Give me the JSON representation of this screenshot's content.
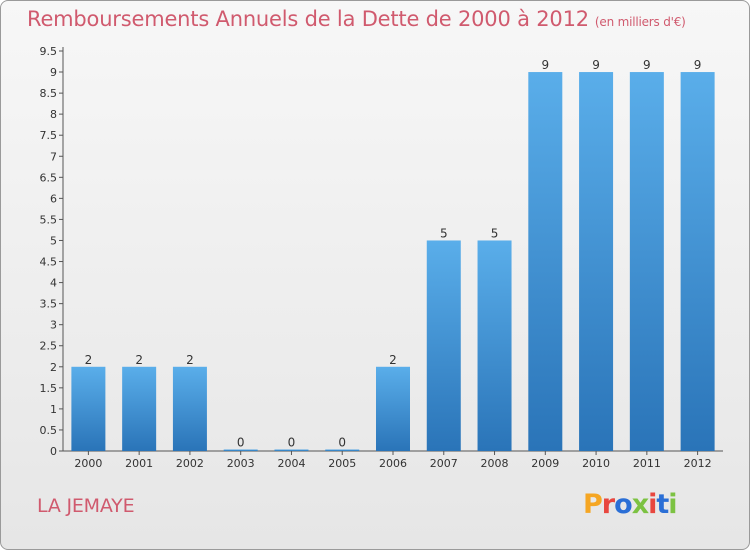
{
  "header": {
    "title": "Remboursements Annuels de la Dette de 2000 à 2012",
    "unit": "(en milliers d'€)"
  },
  "footer": {
    "commune": "LA JEMAYE",
    "logo_text": "Proxiti"
  },
  "chart_data": {
    "type": "bar",
    "title": "Remboursements Annuels de la Dette de 2000 à 2012",
    "subtitle": "(en milliers d'€)",
    "xlabel": "",
    "ylabel": "",
    "categories": [
      "2000",
      "2001",
      "2002",
      "2003",
      "2004",
      "2005",
      "2006",
      "2007",
      "2008",
      "2009",
      "2010",
      "2011",
      "2012"
    ],
    "values": [
      2,
      2,
      2,
      0,
      0,
      0,
      2,
      5,
      5,
      9,
      9,
      9,
      9
    ],
    "value_labels": [
      "2",
      "2",
      "2",
      "0",
      "0",
      "0",
      "2",
      "5",
      "5",
      "9",
      "9",
      "9",
      "9"
    ],
    "ylim": [
      0,
      9.5
    ],
    "yticks": [
      "0",
      "0.5",
      "1",
      "1.5",
      "2",
      "2.5",
      "3",
      "3.5",
      "4",
      "4.5",
      "5",
      "5.5",
      "6",
      "6.5",
      "7",
      "7.5",
      "8",
      "8.5",
      "9",
      "9.5"
    ],
    "ytick_values": [
      0,
      0.5,
      1,
      1.5,
      2,
      2.5,
      3,
      3.5,
      4,
      4.5,
      5,
      5.5,
      6,
      6.5,
      7,
      7.5,
      8,
      8.5,
      9,
      9.5
    ],
    "grid": false,
    "legend": "none",
    "bar_color": "#3d8fd6",
    "bar_color_light": "#5aaeea",
    "bar_color_dark": "#2a74b8"
  },
  "colors": {
    "title": "#d05a6e",
    "logo": [
      "#f5a623",
      "#e8473f",
      "#2b6fd6",
      "#7cc242",
      "#e8473f",
      "#2b6fd6",
      "#7cc242"
    ]
  }
}
